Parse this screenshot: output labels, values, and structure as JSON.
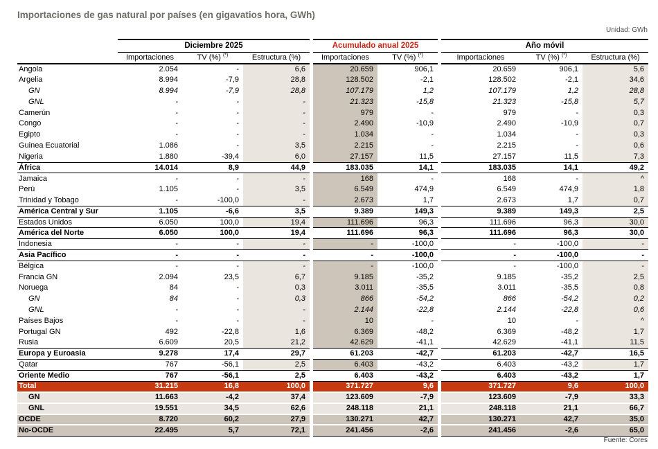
{
  "title": "Importaciones de gas natural por países (en gigavatios hora, GWh)",
  "unit_label": "Unidad: GWh",
  "source": "Fuente: Cores",
  "colors": {
    "total_row_bg": "#c53a10",
    "accent_red_text": "#ce2413",
    "light_shade": "#eae6df",
    "dark_shade": "#cdc5b9",
    "title_gray": "#6d6d66"
  },
  "column_groups": [
    {
      "label": "Diciembre 2025",
      "red": false,
      "columns": [
        {
          "label": "Importaciones"
        },
        {
          "label": "TV (%)",
          "sup": "(*)"
        },
        {
          "label": "Estructura (%)"
        }
      ]
    },
    {
      "label": "Acumulado anual 2025",
      "red": true,
      "columns": [
        {
          "label": "Importaciones"
        },
        {
          "label": "TV (%)",
          "sup": "(*)"
        }
      ]
    },
    {
      "label": "Año móvil",
      "red": false,
      "columns": [
        {
          "label": "Importaciones"
        },
        {
          "label": "TV (%)",
          "sup": "(*)"
        },
        {
          "label": "Estructura (%)"
        }
      ]
    }
  ],
  "rows": [
    {
      "label": "Angola",
      "style": "normal",
      "cells": [
        "2.054",
        "-",
        "6,6",
        "20.659",
        "906,1",
        "20.659",
        "906,1",
        "5,6"
      ]
    },
    {
      "label": "Argelia",
      "style": "normal",
      "cells": [
        "8.994",
        "-7,9",
        "28,8",
        "128.502",
        "-2,1",
        "128.502",
        "-2,1",
        "34,6"
      ]
    },
    {
      "label": "GN",
      "style": "sub",
      "cells": [
        "8.994",
        "-7,9",
        "28,8",
        "107.179",
        "1,2",
        "107.179",
        "1,2",
        "28,8"
      ]
    },
    {
      "label": "GNL",
      "style": "sub",
      "cells": [
        "-",
        "-",
        "-",
        "21.323",
        "-15,8",
        "21.323",
        "-15,8",
        "5,7"
      ]
    },
    {
      "label": "Camerún",
      "style": "normal",
      "cells": [
        "-",
        "-",
        "-",
        "979",
        "-",
        "979",
        "-",
        "0,3"
      ]
    },
    {
      "label": "Congo",
      "style": "normal",
      "cells": [
        "-",
        "-",
        "-",
        "2.490",
        "-10,9",
        "2.490",
        "-10,9",
        "0,7"
      ]
    },
    {
      "label": "Egipto",
      "style": "normal",
      "cells": [
        "-",
        "-",
        "-",
        "1.034",
        "-",
        "1.034",
        "-",
        "0,3"
      ]
    },
    {
      "label": "Guinea Ecuatorial",
      "style": "normal",
      "cells": [
        "1.086",
        "-",
        "3,5",
        "2.215",
        "-",
        "2.215",
        "-",
        "0,6"
      ]
    },
    {
      "label": "Nigeria",
      "style": "normal",
      "cells": [
        "1.880",
        "-39,4",
        "6,0",
        "27.157",
        "11,5",
        "27.157",
        "11,5",
        "7,3"
      ]
    },
    {
      "label": "África",
      "style": "subtotal",
      "cells": [
        "14.014",
        "8,9",
        "44,9",
        "183.035",
        "14,1",
        "183.035",
        "14,1",
        "49,2"
      ]
    },
    {
      "label": "Jamaica",
      "style": "normal",
      "cells": [
        "-",
        "-",
        "-",
        "168",
        "-",
        "168",
        "-",
        "^"
      ]
    },
    {
      "label": "Perú",
      "style": "normal",
      "cells": [
        "1.105",
        "-",
        "3,5",
        "6.549",
        "474,9",
        "6.549",
        "474,9",
        "1,8"
      ]
    },
    {
      "label": "Trinidad y Tobago",
      "style": "normal",
      "cells": [
        "-",
        "-100,0",
        "-",
        "2.673",
        "1,7",
        "2.673",
        "1,7",
        "0,7"
      ]
    },
    {
      "label": "América Central y Sur",
      "style": "subtotal",
      "cells": [
        "1.105",
        "-6,6",
        "3,5",
        "9.389",
        "149,3",
        "9.389",
        "149,3",
        "2,5"
      ]
    },
    {
      "label": "Estados Unidos",
      "style": "normal",
      "cells": [
        "6.050",
        "100,0",
        "19,4",
        "111.696",
        "96,3",
        "111.696",
        "96,3",
        "30,0"
      ]
    },
    {
      "label": "América del Norte",
      "style": "subtotal",
      "cells": [
        "6.050",
        "100,0",
        "19,4",
        "111.696",
        "96,3",
        "111.696",
        "96,3",
        "30,0"
      ]
    },
    {
      "label": "Indonesia",
      "style": "normal",
      "cells": [
        "-",
        "-",
        "-",
        "-",
        "-100,0",
        "-",
        "-100,0",
        "-"
      ]
    },
    {
      "label": "Asia Pacífico",
      "style": "subtotal",
      "cells": [
        "-",
        "-",
        "-",
        "-",
        "-100,0",
        "-",
        "-100,0",
        "-"
      ]
    },
    {
      "label": "Bélgica",
      "style": "normal",
      "cells": [
        "-",
        "-",
        "-",
        "-",
        "-100,0",
        "-",
        "-100,0",
        "-"
      ]
    },
    {
      "label": "Francia GN",
      "style": "normal",
      "cells": [
        "2.094",
        "23,5",
        "6,7",
        "9.185",
        "-35,2",
        "9.185",
        "-35,2",
        "2,5"
      ]
    },
    {
      "label": "Noruega",
      "style": "normal",
      "cells": [
        "84",
        "-",
        "0,3",
        "3.011",
        "-35,5",
        "3.011",
        "-35,5",
        "0,8"
      ]
    },
    {
      "label": "GN",
      "style": "sub",
      "cells": [
        "84",
        "-",
        "0,3",
        "866",
        "-54,2",
        "866",
        "-54,2",
        "0,2"
      ]
    },
    {
      "label": "GNL",
      "style": "sub",
      "cells": [
        "-",
        "-",
        "-",
        "2.144",
        "-22,8",
        "2.144",
        "-22,8",
        "0,6"
      ]
    },
    {
      "label": "Países Bajos",
      "style": "normal",
      "cells": [
        "-",
        "-",
        "-",
        "10",
        "-",
        "10",
        "-",
        "^"
      ]
    },
    {
      "label": "Portugal GN",
      "style": "normal",
      "cells": [
        "492",
        "-22,8",
        "1,6",
        "6.369",
        "-48,2",
        "6.369",
        "-48,2",
        "1,7"
      ]
    },
    {
      "label": "Rusia",
      "style": "normal",
      "cells": [
        "6.609",
        "20,5",
        "21,2",
        "42.629",
        "-41,1",
        "42.629",
        "-41,1",
        "11,5"
      ]
    },
    {
      "label": "Europa y Euroasia",
      "style": "subtotal",
      "cells": [
        "9.278",
        "17,4",
        "29,7",
        "61.203",
        "-42,7",
        "61.203",
        "-42,7",
        "16,5"
      ]
    },
    {
      "label": "Qatar",
      "style": "normal",
      "cells": [
        "767",
        "-56,1",
        "2,5",
        "6.403",
        "-43,2",
        "6.403",
        "-43,2",
        "1,7"
      ]
    },
    {
      "label": "Oriente Medio",
      "style": "subtotal",
      "cells": [
        "767",
        "-56,1",
        "2,5",
        "6.403",
        "-43,2",
        "6.403",
        "-43,2",
        "1,7"
      ]
    },
    {
      "label": "Total",
      "style": "total",
      "cells": [
        "31.215",
        "16,8",
        "100,0",
        "371.727",
        "9,6",
        "371.727",
        "9,6",
        "100,0"
      ]
    },
    {
      "label": "GN",
      "style": "suml",
      "cells": [
        "11.663",
        "-4,2",
        "37,4",
        "123.609",
        "-7,9",
        "123.609",
        "-7,9",
        "33,3"
      ]
    },
    {
      "label": "GNL",
      "style": "suml",
      "cells": [
        "19.551",
        "34,5",
        "62,6",
        "248.118",
        "21,1",
        "248.118",
        "21,1",
        "66,7"
      ]
    },
    {
      "label": "OCDE",
      "style": "sumd",
      "cells": [
        "8.720",
        "60,2",
        "27,9",
        "130.271",
        "42,7",
        "130.271",
        "42,7",
        "35,0"
      ]
    },
    {
      "label": "No-OCDE",
      "style": "sumd",
      "cells": [
        "22.495",
        "5,7",
        "72,1",
        "241.456",
        "-2,6",
        "241.456",
        "-2,6",
        "65,0"
      ]
    }
  ]
}
